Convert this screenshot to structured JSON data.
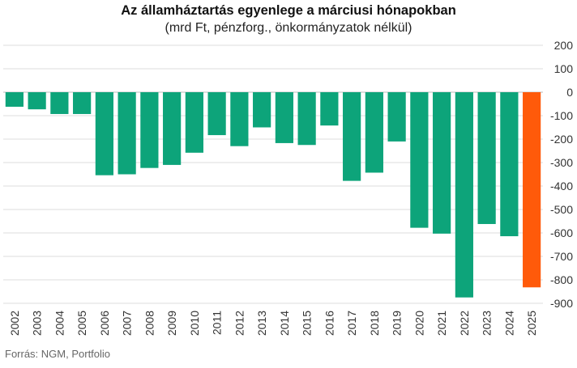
{
  "chart_data": {
    "type": "bar",
    "title": "Az államháztartás egyenlege a márciusi hónapokban",
    "subtitle": "(mrd Ft, pénzforg., önkormányzatok nélkül)",
    "xlabel": "",
    "ylabel": "",
    "categories": [
      "2002",
      "2003",
      "2004",
      "2005",
      "2006",
      "2007",
      "2008",
      "2009",
      "2010",
      "2011",
      "2012",
      "2013",
      "2014",
      "2015",
      "2016",
      "2017",
      "2018",
      "2019",
      "2020",
      "2021",
      "2022",
      "2023",
      "2024",
      "2025"
    ],
    "values": [
      -62,
      -73,
      -93,
      -93,
      -354,
      -350,
      -323,
      -310,
      -258,
      -183,
      -230,
      -150,
      -217,
      -225,
      -142,
      -378,
      -343,
      -210,
      -578,
      -603,
      -875,
      -562,
      -614,
      -832
    ],
    "ylim": [
      -900,
      200
    ],
    "yticks": [
      200,
      100,
      0,
      -100,
      -200,
      -300,
      -400,
      -500,
      -600,
      -700,
      -800,
      -900
    ],
    "grid": true,
    "y_axis_side": "right",
    "colors": {
      "default": "#0da47a",
      "highlight": "#ff5a0a"
    },
    "highlight_category": "2025"
  },
  "source": "Forrás: NGM, Portfolio"
}
